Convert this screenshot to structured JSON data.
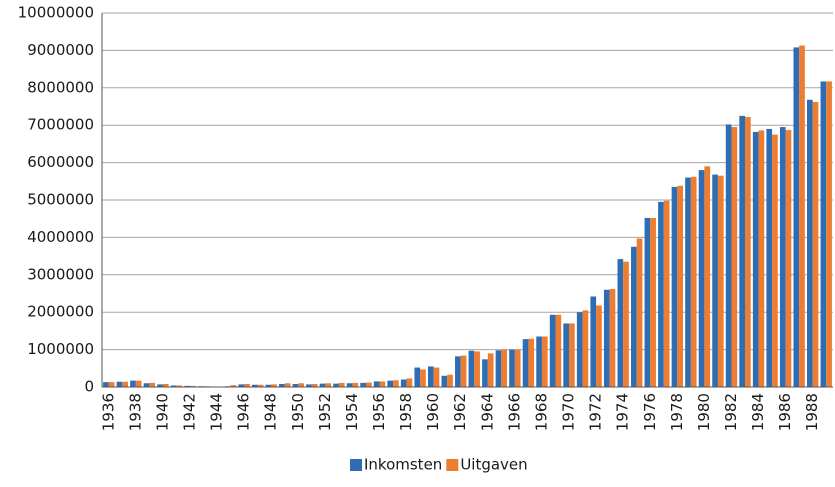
{
  "chart_data": {
    "type": "bar",
    "categories": [
      "1936",
      null,
      "1938",
      null,
      "1940",
      null,
      "1942",
      null,
      "1944",
      null,
      "1946",
      null,
      "1948",
      null,
      "1950",
      null,
      "1952",
      null,
      "1954",
      null,
      "1956",
      null,
      "1958",
      null,
      "1960",
      null,
      "1962",
      null,
      "1964",
      null,
      "1966",
      null,
      "1968",
      null,
      "1970",
      null,
      "1972",
      null,
      "1974",
      null,
      "1976",
      null,
      "1978",
      null,
      "1980",
      null,
      "1982",
      null,
      "1984",
      null,
      "1986",
      null,
      "1988",
      null
    ],
    "series": [
      {
        "name": "Inkomsten",
        "color": "#2e6db4",
        "values": [
          130000,
          140000,
          170000,
          100000,
          70000,
          40000,
          30000,
          20000,
          10000,
          20000,
          70000,
          60000,
          60000,
          80000,
          80000,
          70000,
          90000,
          90000,
          100000,
          110000,
          150000,
          170000,
          200000,
          520000,
          550000,
          300000,
          820000,
          970000,
          740000,
          980000,
          1000000,
          1280000,
          1350000,
          1930000,
          1700000,
          2000000,
          2420000,
          2600000,
          3420000,
          3750000,
          4520000,
          4950000,
          5350000,
          5600000,
          5800000,
          5680000,
          7020000,
          7250000,
          6820000,
          6900000,
          6950000,
          9080000,
          7680000,
          8170000
        ]
      },
      {
        "name": "Uitgaven",
        "color": "#ed7d31",
        "values": [
          130000,
          140000,
          170000,
          110000,
          80000,
          40000,
          30000,
          20000,
          10000,
          50000,
          80000,
          60000,
          70000,
          100000,
          100000,
          80000,
          100000,
          110000,
          110000,
          120000,
          150000,
          180000,
          230000,
          470000,
          520000,
          330000,
          840000,
          950000,
          900000,
          1000000,
          1000000,
          1290000,
          1350000,
          1930000,
          1700000,
          2050000,
          2180000,
          2620000,
          3350000,
          3970000,
          4520000,
          4980000,
          5380000,
          5620000,
          5900000,
          5650000,
          6950000,
          7220000,
          6860000,
          6750000,
          6870000,
          9130000,
          7620000,
          8170000
        ]
      }
    ],
    "ylim": [
      0,
      10000000
    ],
    "yticks": [
      0,
      1000000,
      2000000,
      3000000,
      4000000,
      5000000,
      6000000,
      7000000,
      8000000,
      9000000,
      10000000
    ],
    "grid": true,
    "legend": "bottom"
  }
}
